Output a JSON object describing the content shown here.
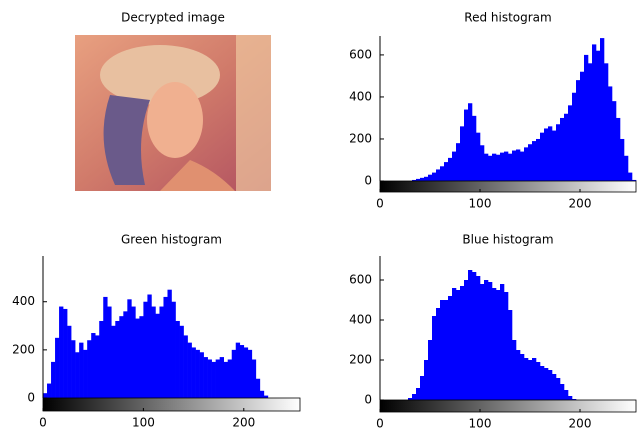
{
  "chart_data": [
    {
      "type": "image",
      "title": "Decrypted image"
    },
    {
      "type": "histogram",
      "title": "Red histogram",
      "color": "#0000ff",
      "bins": [
        0,
        4,
        8,
        12,
        16,
        20,
        24,
        28,
        32,
        36,
        40,
        44,
        48,
        52,
        56,
        60,
        64,
        68,
        72,
        76,
        80,
        84,
        88,
        92,
        96,
        100,
        104,
        108,
        112,
        116,
        120,
        124,
        128,
        132,
        136,
        140,
        144,
        148,
        152,
        156,
        160,
        164,
        168,
        172,
        176,
        180,
        184,
        188,
        192,
        196,
        200,
        204,
        208,
        212,
        216,
        220,
        224,
        228,
        232,
        236,
        240,
        244,
        248,
        252,
        256
      ],
      "values": [
        0,
        0,
        0,
        0,
        0,
        0,
        0,
        0,
        5,
        10,
        15,
        20,
        30,
        40,
        55,
        70,
        90,
        110,
        140,
        180,
        260,
        340,
        370,
        310,
        230,
        170,
        130,
        120,
        130,
        125,
        135,
        140,
        130,
        145,
        150,
        140,
        160,
        175,
        190,
        200,
        230,
        250,
        260,
        240,
        270,
        300,
        320,
        360,
        420,
        480,
        520,
        600,
        560,
        650,
        620,
        680,
        560,
        450,
        380,
        300,
        200,
        120,
        40,
        5
      ],
      "xlim": [
        0,
        256
      ],
      "ylim": [
        0,
        690
      ],
      "xticks": [
        0,
        100,
        200
      ],
      "yticks": [
        0,
        200,
        400,
        600
      ]
    },
    {
      "type": "histogram",
      "title": "Green histogram",
      "color": "#0000ff",
      "bins": [
        0,
        4,
        8,
        12,
        16,
        20,
        24,
        28,
        32,
        36,
        40,
        44,
        48,
        52,
        56,
        60,
        64,
        68,
        72,
        76,
        80,
        84,
        88,
        92,
        96,
        100,
        104,
        108,
        112,
        116,
        120,
        124,
        128,
        132,
        136,
        140,
        144,
        148,
        152,
        156,
        160,
        164,
        168,
        172,
        176,
        180,
        184,
        188,
        192,
        196,
        200,
        204,
        208,
        212,
        216,
        220,
        224,
        228,
        232,
        236,
        240,
        244,
        248,
        252,
        256
      ],
      "values": [
        20,
        60,
        150,
        250,
        380,
        370,
        300,
        240,
        190,
        230,
        200,
        240,
        270,
        260,
        320,
        420,
        380,
        300,
        320,
        340,
        360,
        410,
        380,
        330,
        340,
        400,
        430,
        380,
        350,
        380,
        420,
        450,
        400,
        320,
        300,
        260,
        230,
        210,
        200,
        190,
        170,
        160,
        150,
        160,
        170,
        150,
        160,
        200,
        230,
        220,
        210,
        200,
        160,
        80,
        30,
        10,
        0,
        0,
        0,
        0,
        0,
        0,
        0,
        0
      ],
      "xlim": [
        0,
        256
      ],
      "ylim": [
        0,
        590
      ],
      "xticks": [
        0,
        100,
        200
      ],
      "yticks": [
        0,
        200,
        400
      ]
    },
    {
      "type": "histogram",
      "title": "Blue histogram",
      "color": "#0000ff",
      "bins": [
        0,
        4,
        8,
        12,
        16,
        20,
        24,
        28,
        32,
        36,
        40,
        44,
        48,
        52,
        56,
        60,
        64,
        68,
        72,
        76,
        80,
        84,
        88,
        92,
        96,
        100,
        104,
        108,
        112,
        116,
        120,
        124,
        128,
        132,
        136,
        140,
        144,
        148,
        152,
        156,
        160,
        164,
        168,
        172,
        176,
        180,
        184,
        188,
        192,
        196,
        200,
        204,
        208,
        212,
        216,
        220,
        224,
        228,
        232,
        236,
        240,
        244,
        248,
        252,
        256
      ],
      "values": [
        0,
        0,
        0,
        0,
        0,
        0,
        0,
        10,
        30,
        60,
        120,
        200,
        300,
        420,
        460,
        500,
        500,
        520,
        560,
        550,
        570,
        600,
        650,
        640,
        620,
        580,
        600,
        590,
        560,
        550,
        580,
        540,
        450,
        300,
        250,
        230,
        210,
        200,
        210,
        190,
        170,
        160,
        150,
        130,
        110,
        80,
        50,
        20,
        5,
        0,
        0,
        0,
        0,
        0,
        0,
        0,
        0,
        0,
        0,
        0,
        0,
        0,
        0,
        0
      ],
      "xlim": [
        0,
        256
      ],
      "ylim": [
        0,
        720
      ],
      "xticks": [
        0,
        100,
        200
      ],
      "yticks": [
        0,
        200,
        400,
        600
      ]
    }
  ]
}
